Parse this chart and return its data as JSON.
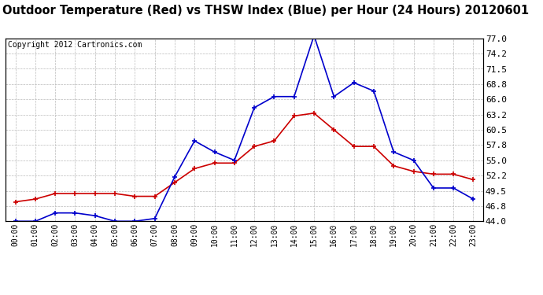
{
  "title": "Outdoor Temperature (Red) vs THSW Index (Blue) per Hour (24 Hours) 20120601",
  "copyright": "Copyright 2012 Cartronics.com",
  "x_labels": [
    "00:00",
    "01:00",
    "02:00",
    "03:00",
    "04:00",
    "05:00",
    "06:00",
    "07:00",
    "08:00",
    "09:00",
    "10:00",
    "11:00",
    "12:00",
    "13:00",
    "14:00",
    "15:00",
    "16:00",
    "17:00",
    "18:00",
    "19:00",
    "20:00",
    "21:00",
    "22:00",
    "23:00"
  ],
  "red_data": [
    47.5,
    48.0,
    49.0,
    49.0,
    49.0,
    49.0,
    48.5,
    48.5,
    51.0,
    53.5,
    54.5,
    54.5,
    57.5,
    58.5,
    63.0,
    63.5,
    60.5,
    57.5,
    57.5,
    54.0,
    53.0,
    52.5,
    52.5,
    51.5
  ],
  "blue_data": [
    44.0,
    44.0,
    45.5,
    45.5,
    45.0,
    44.0,
    44.0,
    44.5,
    52.0,
    58.5,
    56.5,
    55.0,
    64.5,
    66.5,
    66.5,
    77.5,
    66.5,
    69.0,
    67.5,
    56.5,
    55.0,
    50.0,
    50.0,
    48.0
  ],
  "ylim": [
    44.0,
    77.0
  ],
  "yticks": [
    44.0,
    46.8,
    49.5,
    52.2,
    55.0,
    57.8,
    60.5,
    63.2,
    66.0,
    68.8,
    71.5,
    74.2,
    77.0
  ],
  "red_color": "#cc0000",
  "blue_color": "#0000cc",
  "bg_color": "#ffffff",
  "plot_bg_color": "#ffffff",
  "grid_color": "#bbbbbb",
  "title_fontsize": 10.5,
  "copyright_fontsize": 7
}
